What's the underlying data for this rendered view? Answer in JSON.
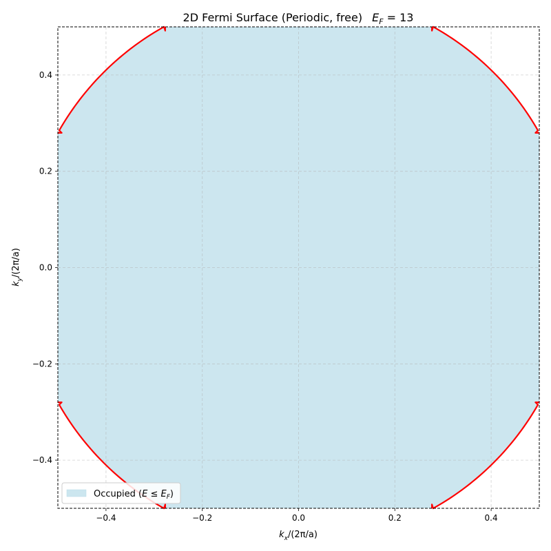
{
  "chart_data": {
    "type": "area",
    "title": "2D Fermi Surface (Periodic, free)   E_F = 13",
    "title_parts": {
      "main": "2D Fermi Surface (Periodic, free)",
      "ef_symbol": "E",
      "ef_sub": "F",
      "ef_value": " = 13"
    },
    "xlabel": {
      "k": "k",
      "sub": "x",
      "rest": "/(2π/a)"
    },
    "ylabel": {
      "k": "k",
      "sub": "y",
      "rest": "/(2π/a)"
    },
    "xlim": [
      -0.5,
      0.5
    ],
    "ylim": [
      -0.5,
      0.5
    ],
    "xticks": [
      -0.4,
      -0.2,
      0.0,
      0.2,
      0.4
    ],
    "yticks": [
      -0.4,
      -0.2,
      0.0,
      0.2,
      0.4
    ],
    "xtick_labels": [
      "−0.4",
      "−0.2",
      "0.0",
      "0.2",
      "0.4"
    ],
    "ytick_labels": [
      "−0.4",
      "−0.2",
      "0.0",
      "0.2",
      "0.4"
    ],
    "grid": true,
    "legend": {
      "placement": "lower-left",
      "label": "Occupied (E ≤ E_F)",
      "label_parts": {
        "pre": "Occupied (",
        "e": "E",
        "le": " ≤ ",
        "ef": "E",
        "ef_sub": "F",
        "post": ")"
      }
    },
    "fermi_radius": 0.573,
    "fermi_corner_x": 0.277,
    "series": [
      {
        "name": "Occupied (E ≤ E_F)",
        "kind": "filled-region",
        "color": "#cce6ef"
      },
      {
        "kind": "fermi-contour",
        "color": "#ff0000"
      }
    ]
  },
  "colors": {
    "fill": "#cce6ef",
    "contour": "#ff0000",
    "grid": "#b0b0b0",
    "frame": "#000000"
  }
}
